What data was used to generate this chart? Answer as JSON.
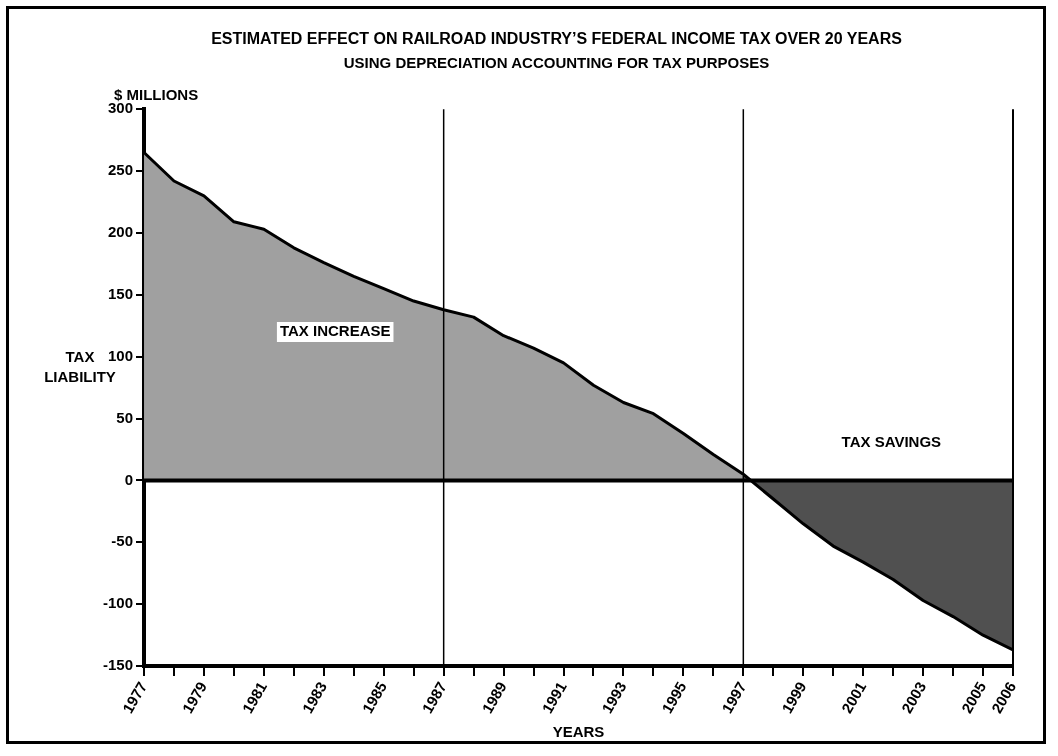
{
  "chart_data": {
    "type": "area",
    "title": "ESTIMATED EFFECT ON RAILROAD INDUSTRY’S FEDERAL INCOME TAX OVER 20 YEARS",
    "subtitle": "USING DEPRECIATION ACCOUNTING FOR TAX PURPOSES",
    "xlabel": "YEARS",
    "ylabel": "TAX LIABILITY",
    "series": [
      {
        "color": "#a0a0a0",
        "x": [
          1977,
          1978,
          1979,
          1980,
          1981,
          1982,
          1983,
          1984,
          1985,
          1986,
          1987,
          1988,
          1989,
          1990,
          1991,
          1992,
          1993,
          1994,
          1995,
          1996,
          1997
        ],
        "values": [
          265,
          242,
          230,
          209,
          203,
          188,
          176,
          165,
          155,
          145,
          138,
          132,
          117,
          107,
          95,
          77,
          63,
          54,
          38,
          21,
          5
        ]
      },
      {
        "color": "#505050",
        "x": [
          1997,
          1998,
          1999,
          2000,
          2001,
          2002,
          2003,
          2004,
          2005,
          2006
        ],
        "values": [
          5,
          -15,
          -35,
          -53,
          -66,
          -80,
          -97,
          -110,
          -125,
          -137
        ]
      }
    ],
    "xlim": [
      1977,
      2006
    ],
    "xticks": [
      1977,
      {
        "value": 1978,
        "label": null
      },
      1979,
      {
        "value": 1980,
        "label": null
      },
      1981,
      {
        "value": 1982,
        "label": null
      },
      1983,
      {
        "value": 1984,
        "label": null
      },
      1985,
      {
        "value": 1986,
        "label": null
      },
      1987,
      {
        "value": 1988,
        "label": null
      },
      1989,
      {
        "value": 1990,
        "label": null
      },
      1991,
      {
        "value": 1992,
        "label": null
      },
      1993,
      {
        "value": 1994,
        "label": null
      },
      1995,
      {
        "value": 1996,
        "label": null
      },
      1997,
      {
        "value": 1998,
        "label": null
      },
      1999,
      {
        "value": 2000,
        "label": null
      },
      2001,
      {
        "value": 2002,
        "label": null
      },
      2003,
      {
        "value": 2004,
        "label": null
      },
      2005,
      2006
    ],
    "ylim": [
      -150,
      300
    ],
    "yticks": [
      -150,
      -100,
      -50,
      0,
      50,
      100,
      150,
      200,
      250,
      300
    ],
    "ref_lines": [
      {
        "axis": "x",
        "value": 1987
      },
      {
        "axis": "x",
        "value": 1997
      },
      {
        "axis": "y",
        "value": 0
      }
    ],
    "annotations": [
      "$ MILLIONS",
      "TAX INCREASE",
      "TAX SAVINGS"
    ],
    "grid": false,
    "legend": false
  }
}
